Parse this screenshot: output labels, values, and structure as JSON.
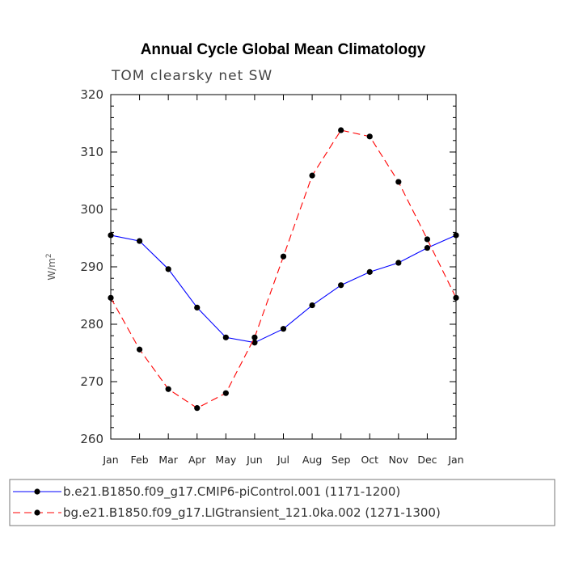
{
  "chart_data": {
    "type": "line",
    "title": "Annual Cycle Global Mean Climatology",
    "subtitle": "TOM clearsky net SW",
    "ylabel": "W/m",
    "ylabel_sup": "2",
    "xlabel": "",
    "ylim": [
      260,
      320
    ],
    "yticks": [
      "260",
      "270",
      "280",
      "290",
      "300",
      "310",
      "320"
    ],
    "categories": [
      "Jan",
      "Feb",
      "Mar",
      "Apr",
      "May",
      "Jun",
      "Jul",
      "Aug",
      "Sep",
      "Oct",
      "Nov",
      "Dec",
      "Jan"
    ],
    "series": [
      {
        "name": "b.e21.B1850.f09_g17.CMIP6-piControl.001 (1171-1200)",
        "color": "#0000ff",
        "dash": "solid",
        "values": [
          295.5,
          294.5,
          289.6,
          282.9,
          277.7,
          276.8,
          279.2,
          283.3,
          286.8,
          289.1,
          290.7,
          293.3,
          295.5
        ]
      },
      {
        "name": "bg.e21.B1850.f09_g17.LIGtransient_121.0ka.002 (1271-1300)",
        "color": "#ff0000",
        "dash": "dashed",
        "values": [
          284.6,
          275.6,
          268.7,
          265.4,
          268.0,
          277.7,
          291.8,
          305.9,
          313.8,
          312.7,
          304.8,
          294.8,
          284.6
        ]
      }
    ],
    "legend_position": "bottom"
  }
}
